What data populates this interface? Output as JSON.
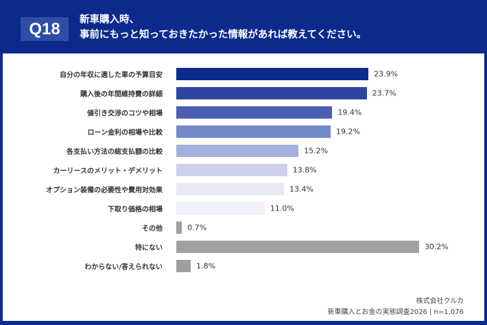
{
  "header": {
    "badge": "Q18",
    "title_line1": "新車購入時、",
    "title_line2": "事前にもっと知っておきたかった情報があれば教えてください。"
  },
  "chart_data": {
    "type": "bar",
    "orientation": "horizontal",
    "title": "新車購入時、事前にもっと知っておきたかった情報があれば教えてください。",
    "categories": [
      "自分の年収に適した車の予算目安",
      "購入後の年間維持費の詳細",
      "値引き交渉のコツや相場",
      "ローン金利の相場や比較",
      "各支払い方法の総支払額の比較",
      "カーリースのメリット・デメリット",
      "オプション装備の必要性や費用対効果",
      "下取り価格の相場",
      "その他",
      "特にない",
      "わからない/答えられない"
    ],
    "values": [
      23.9,
      23.7,
      19.4,
      19.2,
      15.2,
      13.8,
      13.4,
      11.0,
      0.7,
      30.2,
      1.8
    ],
    "labels": [
      "23.9%",
      "23.7%",
      "19.4%",
      "19.2%",
      "15.2%",
      "13.8%",
      "13.4%",
      "11.0%",
      "0.7%",
      "30.2%",
      "1.8%"
    ],
    "colors": [
      "#0b2a8c",
      "#2c45a0",
      "#4a5fb1",
      "#7489c8",
      "#a4afdb",
      "#ccd2ec",
      "#e6e9f6",
      "#eef0fa",
      "#a0a0a0",
      "#a0a0a0",
      "#a0a0a0"
    ],
    "unit": "%",
    "grid": false
  },
  "source": {
    "line1": "株式会社クルカ",
    "line2": "新車購入とお金の実態調査2026 | n=1,076"
  }
}
